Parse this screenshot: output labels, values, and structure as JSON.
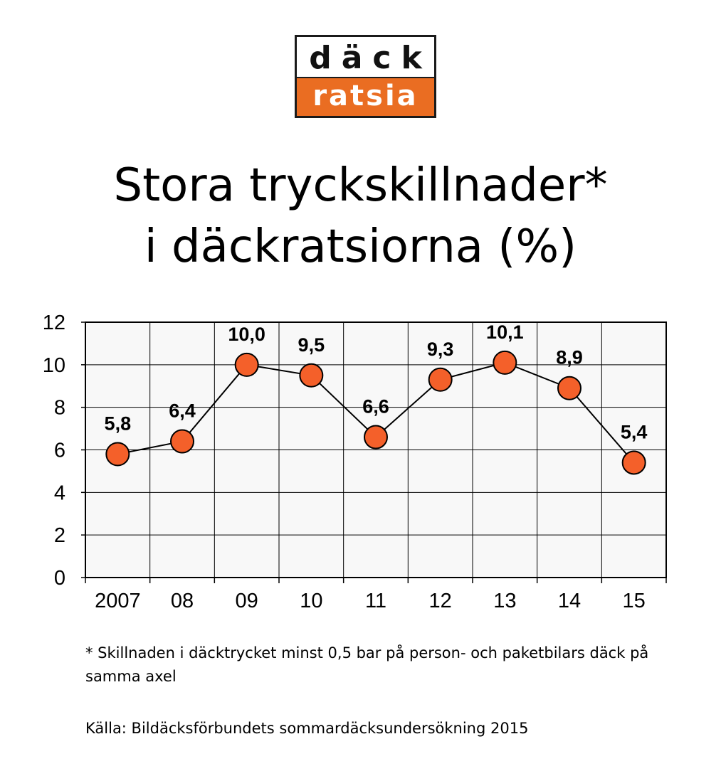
{
  "logo": {
    "top_text": "däck",
    "bottom_text": "ratsia",
    "colors": {
      "top_bg": "#ffffff",
      "bottom_bg": "#ea6d22",
      "border": "#1a1a1a"
    }
  },
  "title": {
    "line1": "Stora tryckskillnader*",
    "line2": "i däckratsiorna (%)"
  },
  "footnote": "*  Skillnaden i däcktrycket minst 0,5 bar på person- och paketbilars däck på samma axel",
  "source": "Källa: Bildäcksförbundets sommardäcksundersökning 2015",
  "chart_data": {
    "type": "line",
    "title": "Stora tryckskillnader* i däckratsiorna (%)",
    "xlabel": "",
    "ylabel": "",
    "categories": [
      "2007",
      "08",
      "09",
      "10",
      "11",
      "12",
      "13",
      "14",
      "15"
    ],
    "values": [
      5.8,
      6.4,
      10.0,
      9.5,
      6.6,
      9.3,
      10.1,
      8.9,
      5.4
    ],
    "data_labels": [
      "5,8",
      "6,4",
      "10,0",
      "9,5",
      "6,6",
      "9,3",
      "10,1",
      "8,9",
      "5,4"
    ],
    "ylim": [
      0,
      12
    ],
    "yticks": [
      0,
      2,
      4,
      6,
      8,
      10,
      12
    ],
    "grid": true,
    "legend": "none",
    "colors": {
      "marker": "#f4602a",
      "line": "#000000",
      "plot_bg": "#f8f8f8"
    }
  }
}
